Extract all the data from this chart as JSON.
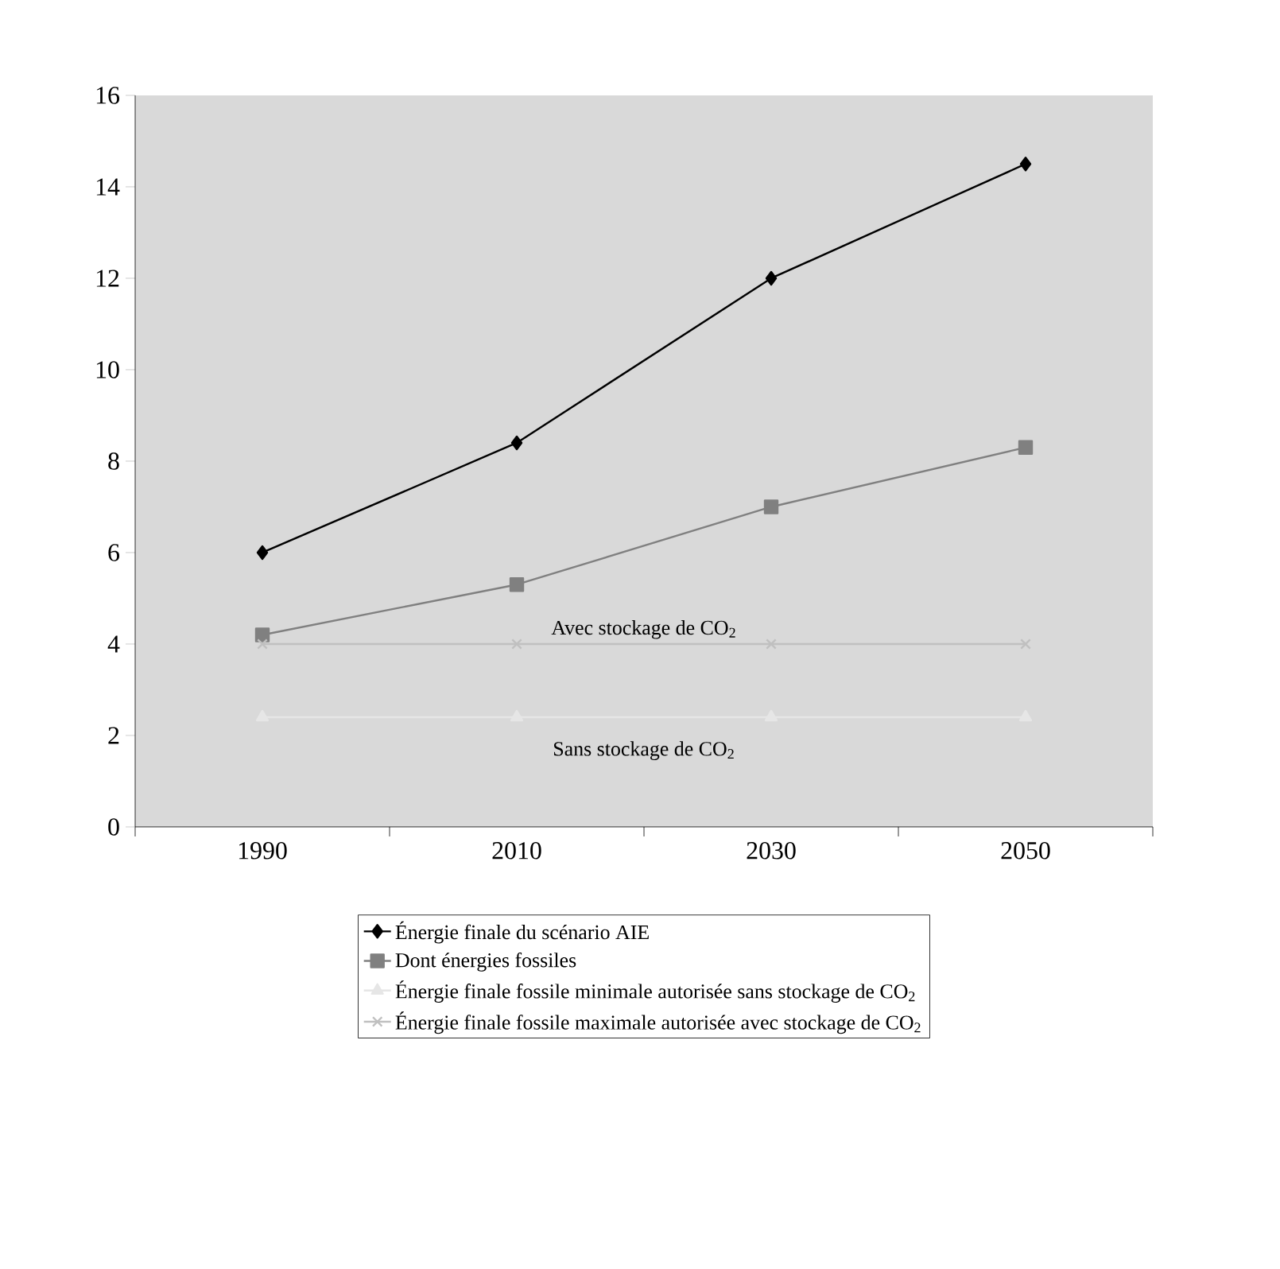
{
  "chart_data": {
    "type": "line",
    "categories": [
      "1990",
      "2010",
      "2030",
      "2050"
    ],
    "series": [
      {
        "name": "Énergie finale du scénario AIE",
        "color": "#000000",
        "marker": "diamond",
        "values": [
          6,
          8.4,
          12,
          14.5
        ]
      },
      {
        "name": "Dont énergies fossiles",
        "color": "#808080",
        "marker": "square",
        "values": [
          4.2,
          5.3,
          7,
          8.3
        ]
      },
      {
        "name": "Énergie finale fossile minimale autorisée sans stockage de CO$_{2}$",
        "color": "#e6e6e6",
        "marker": "triangle",
        "values": [
          2.4,
          2.4,
          2.4,
          2.4
        ]
      },
      {
        "name": "Énergie finale fossile maximale autorisée avec stockage de CO$_{2}$",
        "color": "#c0c0c0",
        "marker": "cross",
        "values": [
          4,
          4,
          4,
          4
        ]
      }
    ],
    "annotations": [
      {
        "text": "Avec stockage de CO$_{2}$",
        "y": 4
      },
      {
        "text": "Sans stockage de CO$_{2}$",
        "y": 2.4
      }
    ],
    "ylim": [
      0,
      16
    ],
    "yticks": [
      0,
      2,
      4,
      6,
      8,
      10,
      12,
      14,
      16
    ],
    "grid": false,
    "legend": "bottom"
  }
}
